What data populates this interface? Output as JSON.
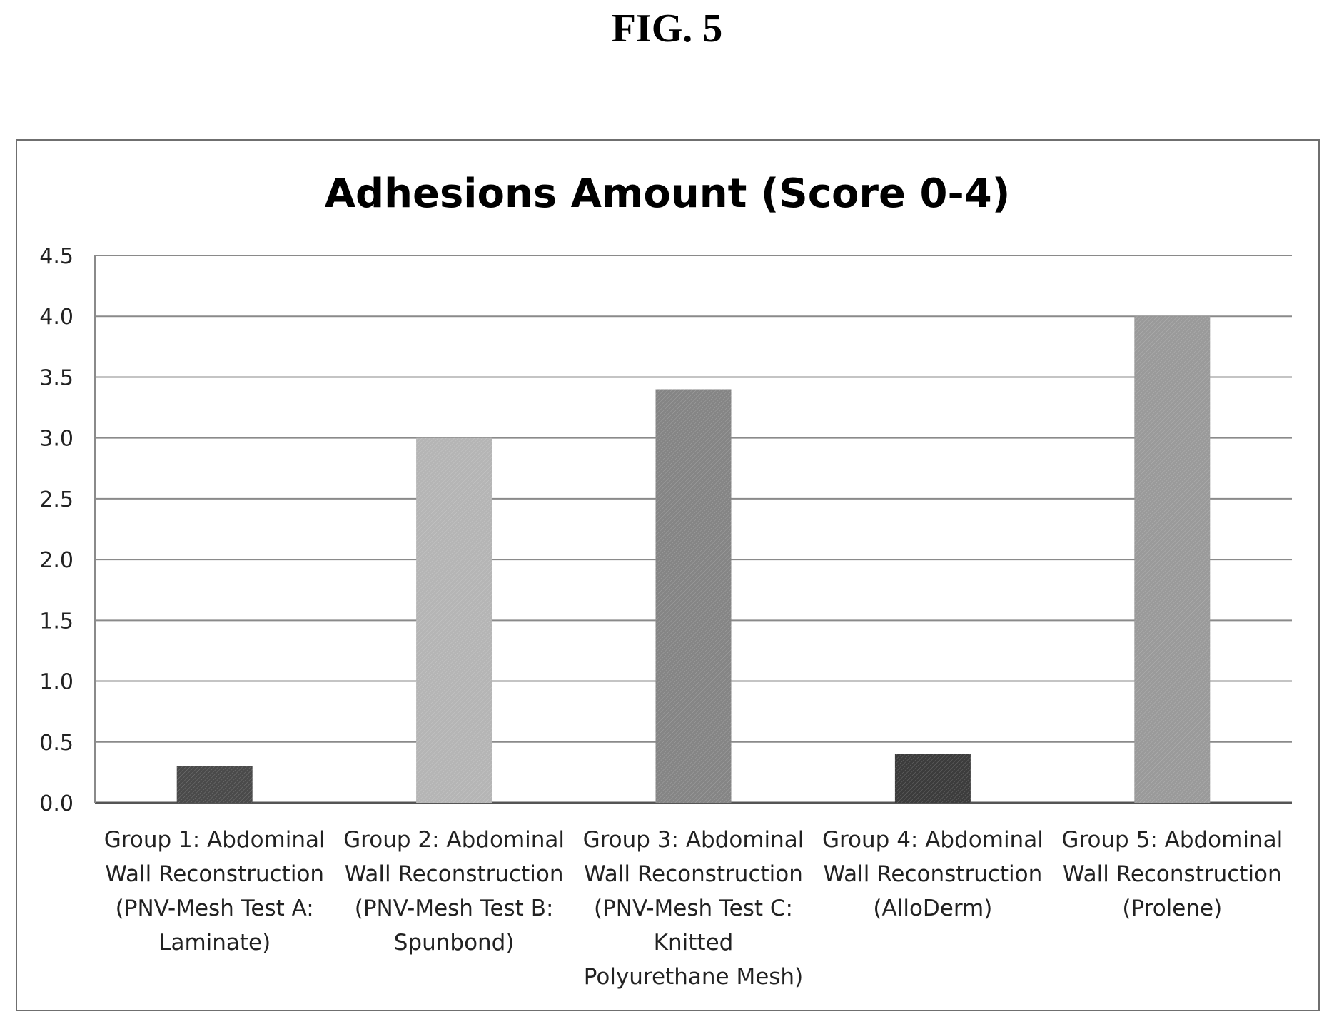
{
  "figure_label": "FIG. 5",
  "chart_data": {
    "type": "bar",
    "title": "Adhesions Amount (Score 0-4)",
    "xlabel": "",
    "ylabel": "",
    "ylim": [
      0,
      4.5
    ],
    "yticks": [
      "0.0",
      "0.5",
      "1.0",
      "1.5",
      "2.0",
      "2.5",
      "3.0",
      "3.5",
      "4.0",
      "4.5"
    ],
    "grid": true,
    "legend": "none",
    "categories": [
      [
        "Group 1: Abdominal",
        "Wall Reconstruction",
        "(PNV-Mesh Test A:",
        "Laminate)"
      ],
      [
        "Group 2: Abdominal",
        "Wall Reconstruction",
        "(PNV-Mesh Test B:",
        "Spunbond)"
      ],
      [
        "Group 3: Abdominal",
        "Wall Reconstruction",
        "(PNV-Mesh Test C:",
        "Knitted",
        "Polyurethane Mesh)"
      ],
      [
        "Group 4: Abdominal",
        "Wall Reconstruction",
        "(AlloDerm)"
      ],
      [
        "Group 5: Abdominal",
        "Wall Reconstruction",
        "(Prolene)"
      ]
    ],
    "values": [
      0.3,
      3.0,
      3.4,
      0.4,
      4.0
    ],
    "bar_colors": [
      "#4a4a4a",
      "#b5b5b5",
      "#858585",
      "#3c3c3c",
      "#9a9a9a"
    ]
  }
}
